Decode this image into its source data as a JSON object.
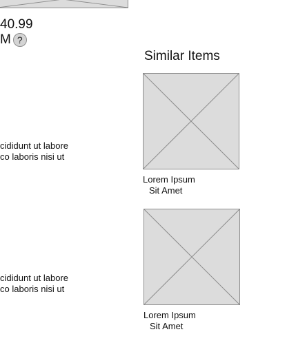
{
  "product": {
    "price": "40.99",
    "price_label": "M",
    "help_icon": "?",
    "description_1": [
      "cididunt ut labore",
      "co laboris nisi ut"
    ],
    "description_2": [
      "cididunt ut labore",
      "co laboris nisi ut"
    ]
  },
  "similar": {
    "heading": "Similar Items",
    "items": [
      {
        "title": "Lorem Ipsum",
        "subtitle": "Sit Amet"
      },
      {
        "title": "Lorem Ipsum",
        "subtitle": "Sit Amet"
      }
    ]
  },
  "colors": {
    "placeholder_fill": "#dcdcdc",
    "placeholder_stroke": "#8c8c8c"
  }
}
